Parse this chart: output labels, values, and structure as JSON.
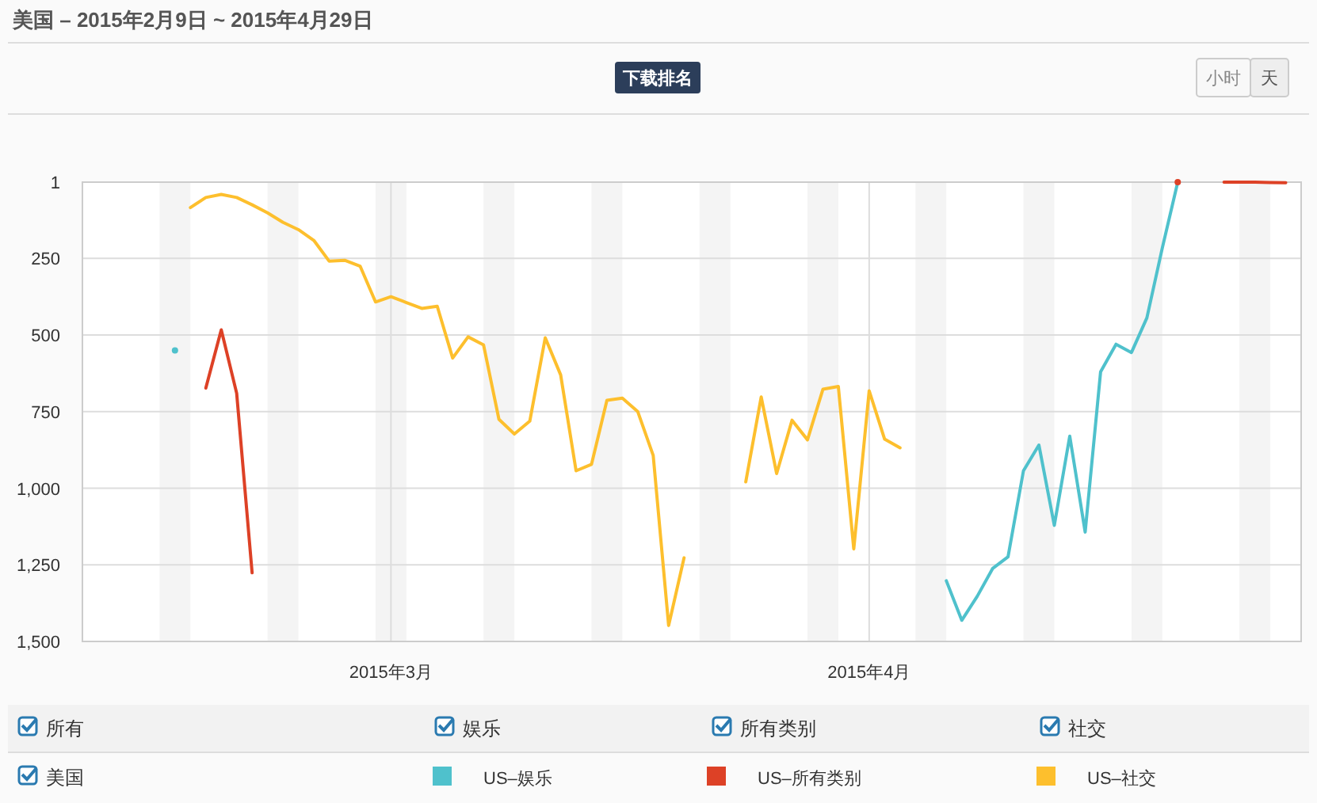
{
  "chart_data": {
    "type": "line",
    "title": "美国 – 2015年2月9日 ~ 2015年4月29日",
    "annotations": [
      "下载排名",
      "小时",
      "天",
      "所有",
      "娱乐",
      "所有类别",
      "社交",
      "美国"
    ],
    "xlim": [
      "2015-02-09",
      "2015-04-29"
    ],
    "xticks": [
      {
        "value": "2015-03-01",
        "label": "2015年3月"
      },
      {
        "value": "2015-04-01",
        "label": "2015年4月"
      }
    ],
    "ylim": [
      1500,
      1
    ],
    "yticks": [
      1,
      250,
      500,
      750,
      {
        "value": 1000,
        "label": "1,000"
      },
      {
        "value": 1250,
        "label": "1,250"
      },
      {
        "value": 1500,
        "label": "1,500"
      }
    ],
    "grid": true,
    "legend": "bottom",
    "line_style": "solid",
    "marker": "none",
    "bands": [
      {
        "axis": "x",
        "from": "2015-02-14",
        "to": "2015-02-16",
        "label": null,
        "color": "#f4f4f4"
      },
      {
        "axis": "x",
        "from": "2015-02-21",
        "to": "2015-02-23",
        "label": null,
        "color": "#f4f4f4"
      },
      {
        "axis": "x",
        "from": "2015-02-28",
        "to": "2015-03-02",
        "label": null,
        "color": "#f4f4f4"
      },
      {
        "axis": "x",
        "from": "2015-03-07",
        "to": "2015-03-09",
        "label": null,
        "color": "#f4f4f4"
      },
      {
        "axis": "x",
        "from": "2015-03-14",
        "to": "2015-03-16",
        "label": null,
        "color": "#f4f4f4"
      },
      {
        "axis": "x",
        "from": "2015-03-21",
        "to": "2015-03-23",
        "label": null,
        "color": "#f4f4f4"
      },
      {
        "axis": "x",
        "from": "2015-03-28",
        "to": "2015-03-30",
        "label": null,
        "color": "#f4f4f4"
      },
      {
        "axis": "x",
        "from": "2015-04-04",
        "to": "2015-04-06",
        "label": null,
        "color": "#f4f4f4"
      },
      {
        "axis": "x",
        "from": "2015-04-11",
        "to": "2015-04-13",
        "label": null,
        "color": "#f4f4f4"
      },
      {
        "axis": "x",
        "from": "2015-04-18",
        "to": "2015-04-20",
        "label": null,
        "color": "#f4f4f4"
      },
      {
        "axis": "x",
        "from": "2015-04-25",
        "to": "2015-04-27",
        "label": null,
        "color": "#f4f4f4"
      }
    ],
    "series": [
      {
        "name": "US–娱乐",
        "color": "#4fc1cc",
        "x": [
          "2015-02-15",
          "2015-02-16",
          "2015-04-05",
          "2015-04-06",
          "2015-04-07",
          "2015-04-08",
          "2015-04-09",
          "2015-04-10",
          "2015-04-11",
          "2015-04-12",
          "2015-04-13",
          "2015-04-14",
          "2015-04-15",
          "2015-04-16",
          "2015-04-17",
          "2015-04-18",
          "2015-04-19",
          "2015-04-20",
          "2015-04-21"
        ],
        "values": [
          550,
          null,
          null,
          1302,
          1431,
          1353,
          1262,
          1224,
          943,
          859,
          1121,
          830,
          1143,
          620,
          530,
          557,
          444,
          216,
          1
        ]
      },
      {
        "name": "US–所有类别",
        "color": "#dd4126",
        "x": [
          "2015-02-17",
          "2015-02-18",
          "2015-02-19",
          "2015-02-20",
          "2015-02-21",
          "2015-04-20",
          "2015-04-21",
          "2015-04-22",
          "2015-04-23",
          "2015-04-24",
          "2015-04-25",
          "2015-04-26",
          "2015-04-27",
          "2015-04-28"
        ],
        "values": [
          673,
          483,
          690,
          1276,
          null,
          null,
          1,
          null,
          null,
          1,
          1,
          1,
          2,
          3
        ]
      },
      {
        "name": "US–社交",
        "color": "#fdbf2d",
        "x": [
          "2015-02-16",
          "2015-02-17",
          "2015-02-18",
          "2015-02-19",
          "2015-02-20",
          "2015-02-21",
          "2015-02-22",
          "2015-02-23",
          "2015-02-24",
          "2015-02-25",
          "2015-02-26",
          "2015-02-27",
          "2015-02-28",
          "2015-03-01",
          "2015-03-02",
          "2015-03-03",
          "2015-03-04",
          "2015-03-05",
          "2015-03-06",
          "2015-03-07",
          "2015-03-08",
          "2015-03-09",
          "2015-03-10",
          "2015-03-11",
          "2015-03-12",
          "2015-03-13",
          "2015-03-14",
          "2015-03-15",
          "2015-03-16",
          "2015-03-17",
          "2015-03-18",
          "2015-03-19",
          "2015-03-20",
          "2015-03-21",
          "2015-03-24",
          "2015-03-25",
          "2015-03-26",
          "2015-03-27",
          "2015-03-28",
          "2015-03-29",
          "2015-03-30",
          "2015-03-31",
          "2015-04-01",
          "2015-04-02",
          "2015-04-03"
        ],
        "values": [
          84,
          51,
          41,
          51,
          75,
          101,
          132,
          156,
          191,
          259,
          256,
          275,
          392,
          375,
          394,
          413,
          406,
          575,
          506,
          532,
          775,
          823,
          781,
          509,
          630,
          943,
          922,
          713,
          706,
          750,
          893,
          1448,
          1227,
          null,
          979,
          702,
          952,
          778,
          842,
          677,
          668,
          1198,
          682,
          840,
          868
        ]
      }
    ]
  }
}
